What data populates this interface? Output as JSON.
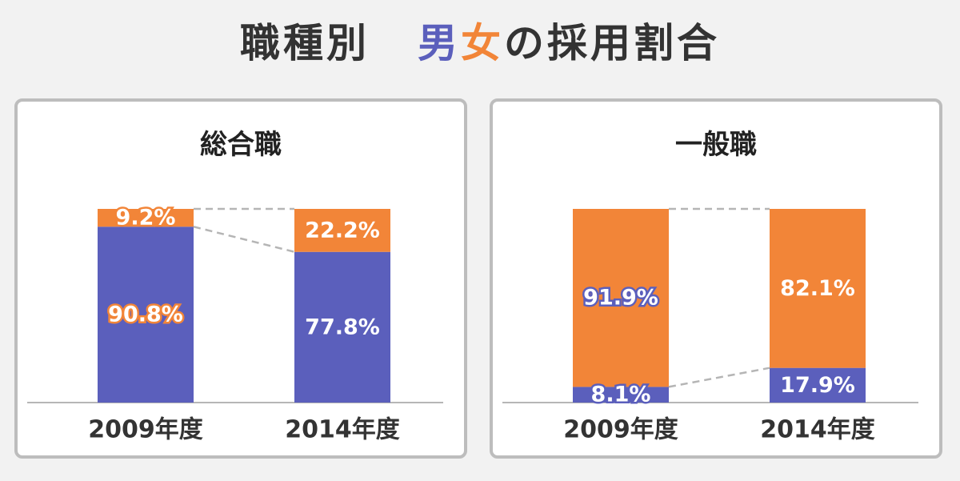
{
  "title": {
    "prefix": "職種別",
    "male": "男",
    "female": "女",
    "suffix": "の採用割合"
  },
  "colors": {
    "male": "#5b5fbc",
    "female": "#f28538",
    "title_text": "#333333",
    "connector": "#b5b5b5",
    "panel_border": "#bdbdbd"
  },
  "chart_data": [
    {
      "type": "bar",
      "title": "総合職",
      "categories": [
        "2009年度",
        "2014年度"
      ],
      "series": [
        {
          "name": "男",
          "values": [
            90.8,
            77.8
          ],
          "labels": [
            "90.8%",
            "77.8%"
          ]
        },
        {
          "name": "女",
          "values": [
            9.2,
            22.2
          ],
          "labels": [
            "9.2%",
            "22.2%"
          ]
        }
      ],
      "stacked": true,
      "ylim": [
        0,
        100
      ],
      "xlabel": "",
      "ylabel": ""
    },
    {
      "type": "bar",
      "title": "一般職",
      "categories": [
        "2009年度",
        "2014年度"
      ],
      "series": [
        {
          "name": "男",
          "values": [
            8.1,
            17.9
          ],
          "labels": [
            "8.1%",
            "17.9%"
          ]
        },
        {
          "name": "女",
          "values": [
            91.9,
            82.1
          ],
          "labels": [
            "91.9%",
            "82.1%"
          ]
        }
      ],
      "stacked": true,
      "ylim": [
        0,
        100
      ],
      "xlabel": "",
      "ylabel": ""
    }
  ]
}
